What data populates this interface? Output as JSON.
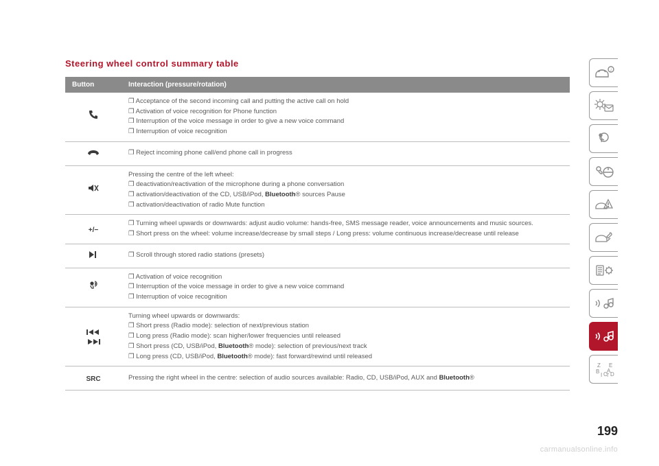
{
  "title": "Steering wheel control summary table",
  "header": {
    "button": "Button",
    "interaction": "Interaction (pressure/rotation)"
  },
  "rows": [
    {
      "icon": "phone-up",
      "lines": [
        "❒ Acceptance of the second incoming call and putting the active call on hold",
        "❒ Activation of voice recognition for Phone function",
        "❒ Interruption of the voice message in order to give a new voice command",
        "❒ Interruption of voice recognition"
      ]
    },
    {
      "icon": "phone-down",
      "lines": [
        "❒ Reject incoming phone call/end phone call in progress"
      ]
    },
    {
      "icon": "mute",
      "lines": [
        "Pressing the centre of the left wheel:",
        "❒ deactivation/reactivation of the microphone during a phone conversation",
        "❒ activation/deactivation of the CD, USB/iPod, <b>Bluetooth</b>® sources Pause",
        "❒ activation/deactivation of radio Mute function"
      ]
    },
    {
      "icon": "plusminus",
      "lines": [
        "❒ Turning wheel upwards or downwards: adjust audio volume: hands-free, SMS message reader, voice announcements and music sources.",
        "❒ Short press on the wheel: volume increase/decrease by small steps / Long press: volume continuous increase/decrease until release"
      ]
    },
    {
      "icon": "next",
      "lines": [
        "❒ Scroll through stored radio stations (presets)"
      ]
    },
    {
      "icon": "voice",
      "lines": [
        "❒ Activation of voice recognition",
        "❒ Interruption of the voice message in order to give a new voice command",
        "❒ Interruption of voice recognition"
      ]
    },
    {
      "icon": "prevnext",
      "lines": [
        "Turning wheel upwards or downwards:",
        "❒ Short press (Radio mode): selection of next/previous station",
        "❒ Long press (Radio mode): scan higher/lower frequencies until released",
        "❒ Short press (CD, USB/iPod, <b>Bluetooth</b>® mode): selection of previous/next track",
        "❒ Long press (CD, USB/iPod, <b>Bluetooth</b>® mode): fast forward/rewind until released"
      ]
    },
    {
      "icon": "src",
      "lines": [
        "Pressing the right wheel in the centre: selection of audio sources available: Radio, CD, USB/iPod, AUX and <b>Bluetooth</b>®"
      ]
    }
  ],
  "pagenum": "199",
  "watermark": "carmanualsonline.info",
  "sidebar_active_index": 8
}
